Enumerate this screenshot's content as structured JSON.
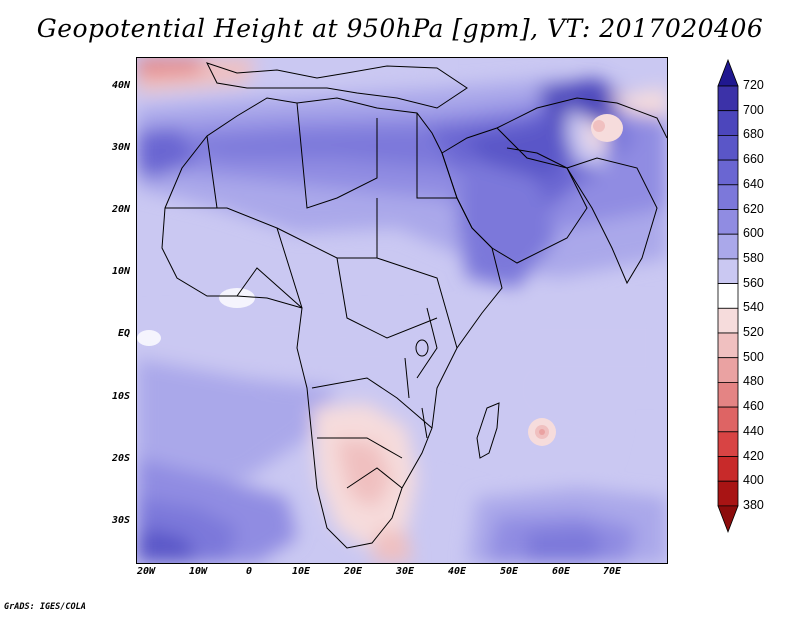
{
  "title": "Geopotential Height at 950hPa [gpm], VT: 2017020406",
  "footer": "GrADS: IGES/COLA",
  "map": {
    "lat_labels": [
      "40N",
      "30N",
      "20N",
      "10N",
      "EQ",
      "10S",
      "20S",
      "30S"
    ],
    "lon_labels": [
      "20W",
      "10W",
      "0",
      "10E",
      "20E",
      "30E",
      "40E",
      "50E",
      "60E",
      "70E"
    ]
  },
  "colorbar": {
    "levels": [
      "720",
      "700",
      "680",
      "660",
      "640",
      "620",
      "600",
      "580",
      "560",
      "540",
      "520",
      "500",
      "480",
      "460",
      "440",
      "420",
      "400",
      "380"
    ],
    "colors": [
      "#201890",
      "#3c32a8",
      "#4c46bc",
      "#5a56c8",
      "#6a66d2",
      "#7c78da",
      "#908ce2",
      "#aaa8ea",
      "#cac8f2",
      "#ffffff",
      "#f6dcdc",
      "#f0c0c0",
      "#eaa2a2",
      "#e48484",
      "#de6464",
      "#d84444",
      "#c82a2a",
      "#a81414",
      "#8c0c0c"
    ]
  }
}
